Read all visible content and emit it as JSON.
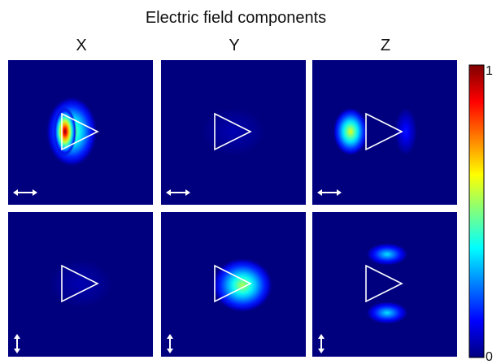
{
  "title": "Electric field components",
  "columns": [
    "X",
    "Y",
    "Z"
  ],
  "colorbar": {
    "max_label": "1",
    "min_label": "0"
  },
  "colormap": [
    "#00007f",
    "#0000ff",
    "#007fff",
    "#00ffff",
    "#7fff7f",
    "#ffff00",
    "#ff7f00",
    "#ff0000",
    "#7f0000"
  ],
  "panels": [
    {
      "row": 0,
      "col": 0,
      "component": "X",
      "polarization": "horizontal",
      "peak": 1.0,
      "pattern": "crescent-left"
    },
    {
      "row": 0,
      "col": 1,
      "component": "Y",
      "polarization": "horizontal",
      "peak": 0.05,
      "pattern": "none"
    },
    {
      "row": 0,
      "col": 2,
      "component": "Z",
      "polarization": "horizontal",
      "peak": 0.6,
      "pattern": "dipole-horizontal"
    },
    {
      "row": 1,
      "col": 0,
      "component": "X",
      "polarization": "vertical",
      "peak": 0.03,
      "pattern": "none"
    },
    {
      "row": 1,
      "col": 1,
      "component": "Y",
      "polarization": "vertical",
      "peak": 0.55,
      "pattern": "crescent-right"
    },
    {
      "row": 1,
      "col": 2,
      "component": "Z",
      "polarization": "vertical",
      "peak": 0.35,
      "pattern": "dipole-vertical"
    }
  ]
}
